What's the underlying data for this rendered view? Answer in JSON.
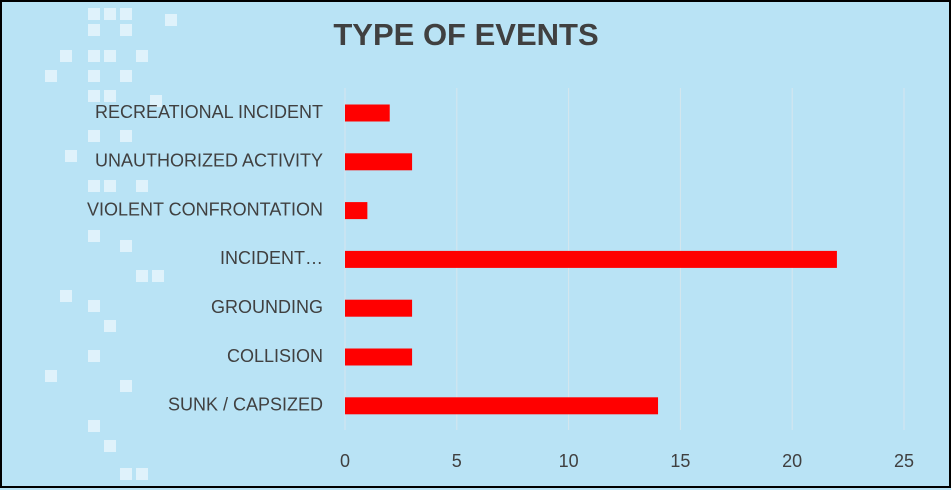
{
  "chart_data": {
    "type": "bar",
    "orientation": "horizontal",
    "title": "TYPE OF EVENTS",
    "categories": [
      "RECREATIONAL INCIDENT",
      "UNAUTHORIZED ACTIVITY",
      "VIOLENT CONFRONTATION",
      "INCIDENT…",
      "GROUNDING",
      "COLLISION",
      "SUNK / CAPSIZED"
    ],
    "values": [
      2,
      3,
      1,
      22,
      3,
      3,
      14
    ],
    "color": "#ff0000",
    "xlim": [
      0,
      25
    ],
    "xticks": [
      0,
      5,
      10,
      15,
      20,
      25
    ],
    "grid": true
  }
}
